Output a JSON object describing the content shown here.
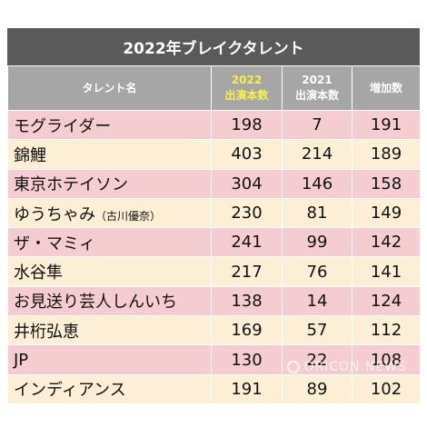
{
  "title": "2022年ブレイクタレント",
  "headers": {
    "name": "タレント名",
    "col2022_year": "2022",
    "col2022_label": "出演本数",
    "col2021_year": "2021",
    "col2021_label": "出演本数",
    "increase": "増加数"
  },
  "rows": [
    {
      "name": "モグライダー",
      "note": "",
      "v2022": "198",
      "v2021": "7",
      "inc": "191"
    },
    {
      "name": "錦鯉",
      "note": "",
      "v2022": "403",
      "v2021": "214",
      "inc": "189"
    },
    {
      "name": "東京ホテイソン",
      "note": "",
      "v2022": "304",
      "v2021": "146",
      "inc": "158"
    },
    {
      "name": "ゆうちゃみ",
      "note": "（古川優奈）",
      "v2022": "230",
      "v2021": "81",
      "inc": "149"
    },
    {
      "name": "ザ・マミィ",
      "note": "",
      "v2022": "241",
      "v2021": "99",
      "inc": "142"
    },
    {
      "name": "水谷隼",
      "note": "",
      "v2022": "217",
      "v2021": "76",
      "inc": "141"
    },
    {
      "name": "お見送り芸人しんいち",
      "note": "",
      "v2022": "138",
      "v2021": "14",
      "inc": "124"
    },
    {
      "name": "井桁弘恵",
      "note": "",
      "v2022": "169",
      "v2021": "57",
      "inc": "112"
    },
    {
      "name": "JP",
      "note": "",
      "v2022": "130",
      "v2021": "22",
      "inc": "108"
    },
    {
      "name": "インディアンス",
      "note": "",
      "v2022": "191",
      "v2021": "89",
      "inc": "102"
    }
  ],
  "colors": {
    "title_bg": "#5a5a5a",
    "header_bg": "#a6a6a6",
    "highlight": "#f7f14a",
    "row_pink": "#f5cccf",
    "row_cream": "#fcefd5"
  },
  "watermark": "ORICON NEWS"
}
